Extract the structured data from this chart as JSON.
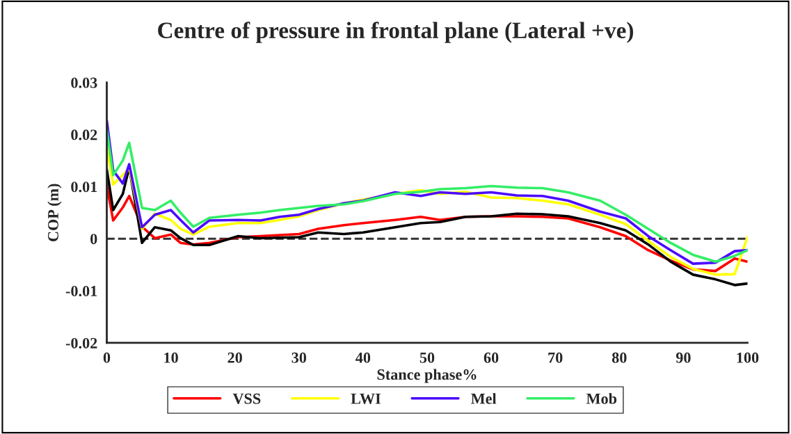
{
  "chart_data": {
    "type": "line",
    "title": "Centre of pressure in frontal plane (Lateral +ve)",
    "xlabel": "Stance phase%",
    "ylabel": "COP (m)",
    "x": [
      0,
      1,
      2.5,
      3.5,
      5.5,
      7.5,
      10,
      11.5,
      13.5,
      16,
      20.5,
      24,
      27,
      30,
      33,
      37,
      40,
      45,
      49,
      52,
      56,
      60,
      64,
      68,
      72,
      77,
      81,
      84.5,
      88,
      91.5,
      95,
      98,
      100
    ],
    "series": [
      {
        "name": "VSS",
        "color": "#ff0000",
        "values": [
          0.0102,
          0.0035,
          0.006,
          0.0082,
          0.0023,
          0.0001,
          0.0008,
          -0.0008,
          -0.0011,
          -0.0008,
          0.0003,
          0.0005,
          0.0007,
          0.0009,
          0.0019,
          0.0026,
          0.003,
          0.0036,
          0.0042,
          0.0036,
          0.0042,
          0.0043,
          0.0043,
          0.0042,
          0.0039,
          0.0022,
          0.0005,
          -0.0022,
          -0.0042,
          -0.0059,
          -0.0062,
          -0.0038,
          -0.0044
        ]
      },
      {
        "color": "#000000",
        "values": [
          0.0133,
          0.0055,
          0.0086,
          0.0137,
          -0.0008,
          0.0022,
          0.0016,
          0.0001,
          -0.0012,
          -0.0012,
          0.0005,
          0.0001,
          0.0002,
          0.0003,
          0.0012,
          0.0009,
          0.0012,
          0.0022,
          0.003,
          0.0032,
          0.0042,
          0.0043,
          0.0048,
          0.0047,
          0.0043,
          0.003,
          0.0016,
          -0.0011,
          -0.0044,
          -0.0069,
          -0.0078,
          -0.0089,
          -0.0086
        ]
      },
      {
        "name": "LWI",
        "color": "#ffff00",
        "values": [
          0.0176,
          0.0104,
          0.0122,
          0.0136,
          0.0019,
          0.0048,
          0.0036,
          0.0019,
          0.0008,
          0.0023,
          0.003,
          0.003,
          0.0036,
          0.0043,
          0.0055,
          0.0068,
          0.0075,
          0.0086,
          0.0093,
          0.0086,
          0.009,
          0.0079,
          0.0078,
          0.0073,
          0.0066,
          0.0046,
          0.0028,
          -0.0004,
          -0.0035,
          -0.0058,
          -0.0069,
          -0.0068,
          0.0003
        ]
      },
      {
        "name": "Mel",
        "color": "#4b0bff",
        "values": [
          0.0227,
          0.0131,
          0.0106,
          0.0143,
          0.0022,
          0.0046,
          0.0055,
          0.0036,
          0.0012,
          0.0035,
          0.0036,
          0.0035,
          0.0042,
          0.0046,
          0.0057,
          0.0068,
          0.0073,
          0.0089,
          0.0082,
          0.0089,
          0.0086,
          0.0089,
          0.0083,
          0.0082,
          0.0073,
          0.0052,
          0.0039,
          0.0005,
          -0.0022,
          -0.0048,
          -0.0046,
          -0.0024,
          -0.0022
        ]
      },
      {
        "name": "Mob",
        "color": "#33ee66",
        "values": [
          0.021,
          0.0122,
          0.015,
          0.0184,
          0.0059,
          0.0055,
          0.0073,
          0.005,
          0.0023,
          0.004,
          0.0046,
          0.005,
          0.0055,
          0.0059,
          0.0063,
          0.0066,
          0.0072,
          0.0086,
          0.009,
          0.0095,
          0.0097,
          0.0101,
          0.0098,
          0.0097,
          0.0089,
          0.0073,
          0.0046,
          0.0019,
          -0.0008,
          -0.0031,
          -0.0044,
          -0.0033,
          -0.0022
        ]
      }
    ],
    "xlim": [
      0,
      100
    ],
    "xticks": [
      0,
      10,
      20,
      30,
      40,
      50,
      60,
      70,
      80,
      90,
      100
    ],
    "ylim": [
      -0.02,
      0.03
    ],
    "yticks": [
      -0.02,
      -0.01,
      0,
      0.01,
      0.02,
      0.03
    ],
    "ref_lines": [
      {
        "axis": "y",
        "value": 0,
        "color": "#333333",
        "line_style": "dashed"
      }
    ],
    "grid": false,
    "legend": "bottom",
    "marker": "none",
    "line_style": "solid"
  }
}
